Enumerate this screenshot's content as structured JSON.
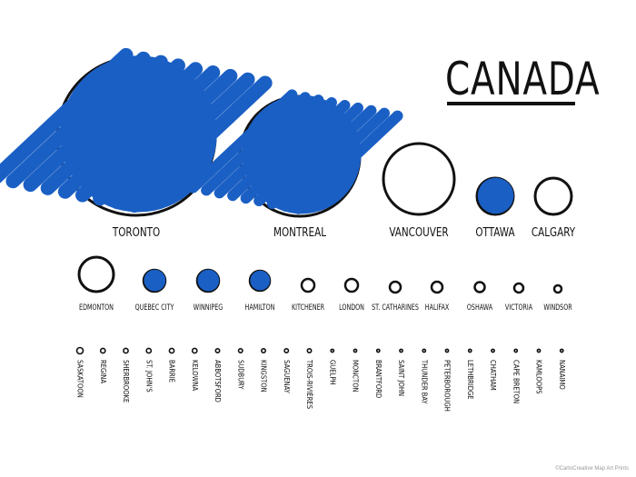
{
  "title": "CANADA",
  "credit": "©CartoCreative Map Art Prints",
  "colors": {
    "fill": "#1a5fc4",
    "stroke": "#111111"
  },
  "rows": [
    [
      {
        "name": "TORONTO",
        "filled": true
      },
      {
        "name": "MONTREAL",
        "filled": true
      },
      {
        "name": "VANCOUVER",
        "filled": false
      },
      {
        "name": "OTTAWA",
        "filled": true
      },
      {
        "name": "CALGARY",
        "filled": false
      }
    ],
    [
      {
        "name": "EDMONTON",
        "filled": false
      },
      {
        "name": "QUEBEC CITY",
        "filled": true
      },
      {
        "name": "WINNIPEG",
        "filled": true
      },
      {
        "name": "HAMILTON",
        "filled": true
      },
      {
        "name": "KITCHENER",
        "filled": false
      },
      {
        "name": "LONDON",
        "filled": false
      },
      {
        "name": "ST. CATHARINES",
        "filled": false
      },
      {
        "name": "HALIFAX",
        "filled": false
      },
      {
        "name": "OSHAWA",
        "filled": false
      },
      {
        "name": "VICTORIA",
        "filled": false
      },
      {
        "name": "WINDSOR",
        "filled": false
      }
    ],
    [
      {
        "name": "SASKATOON",
        "filled": false
      },
      {
        "name": "REGINA",
        "filled": false
      },
      {
        "name": "SHERBROOKE",
        "filled": false
      },
      {
        "name": "ST. JOHN'S",
        "filled": false
      },
      {
        "name": "BARRIE",
        "filled": false
      },
      {
        "name": "KELOWNA",
        "filled": false
      },
      {
        "name": "ABBOTSFORD",
        "filled": false
      },
      {
        "name": "SUDBURY",
        "filled": false
      },
      {
        "name": "KINGSTON",
        "filled": false
      },
      {
        "name": "SAGUENAY",
        "filled": false
      },
      {
        "name": "TROIS-RIVIÈRES",
        "filled": false
      },
      {
        "name": "GUELPH",
        "filled": false
      },
      {
        "name": "MONCTON",
        "filled": false
      },
      {
        "name": "BRANTFORD",
        "filled": false
      },
      {
        "name": "SAINT JOHN",
        "filled": false
      },
      {
        "name": "THUNDER BAY",
        "filled": false
      },
      {
        "name": "PETERBOROUGH",
        "filled": false
      },
      {
        "name": "LETHBRIDGE",
        "filled": false
      },
      {
        "name": "CHATHAM",
        "filled": false
      },
      {
        "name": "CAPE BRETON",
        "filled": false
      },
      {
        "name": "KAMLOOPS",
        "filled": false
      },
      {
        "name": "NANAIMO",
        "filled": false
      }
    ]
  ]
}
